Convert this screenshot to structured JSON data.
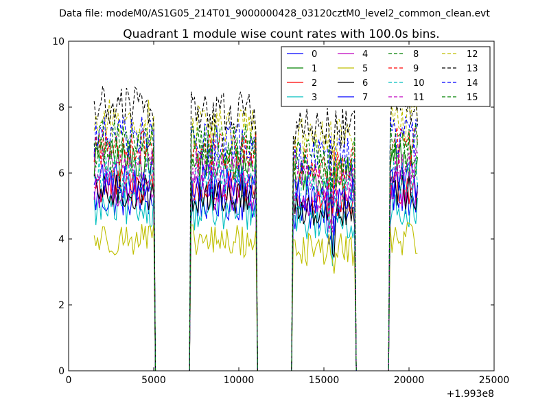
{
  "suptitle": "Data file: modeM0/AS1G05_214T01_9000000428_03120cztM0_level2_common_clean.evt",
  "chart_data": {
    "type": "line",
    "title": "Quadrant 1 module wise count rates with 100.0s bins.",
    "xlabel": "",
    "ylabel": "",
    "xlim": [
      0,
      25000
    ],
    "ylim": [
      0,
      10
    ],
    "x_offset_label": "+1.993e8",
    "xticks": [
      0,
      5000,
      10000,
      15000,
      20000,
      25000
    ],
    "xtick_labels": [
      "0",
      "5000",
      "10000",
      "15000",
      "20000",
      "25000"
    ],
    "yticks": [
      0,
      2,
      4,
      6,
      8,
      10
    ],
    "ytick_labels": [
      "0",
      "2",
      "4",
      "6",
      "8",
      "10"
    ],
    "grid": false,
    "legend_position": "top-right",
    "bin_width": 100,
    "active_segments": [
      [
        1500,
        5000
      ],
      [
        7200,
        11000
      ],
      [
        13200,
        16800
      ],
      [
        18900,
        20500
      ]
    ],
    "series": [
      {
        "name": "0",
        "color": "#0000ff",
        "dash": "solid",
        "level": 5.2
      },
      {
        "name": "1",
        "color": "#008000",
        "dash": "solid",
        "level": 6.4
      },
      {
        "name": "2",
        "color": "#ff0000",
        "dash": "solid",
        "level": 5.6
      },
      {
        "name": "3",
        "color": "#00bfbf",
        "dash": "solid",
        "level": 4.9
      },
      {
        "name": "4",
        "color": "#bf00bf",
        "dash": "solid",
        "level": 5.5
      },
      {
        "name": "5",
        "color": "#bfbf00",
        "dash": "solid",
        "level": 4.0
      },
      {
        "name": "6",
        "color": "#000000",
        "dash": "solid",
        "level": 5.4
      },
      {
        "name": "7",
        "color": "#0000ff",
        "dash": "solid",
        "level": 5.8
      },
      {
        "name": "8",
        "color": "#008000",
        "dash": "dashed",
        "level": 6.6
      },
      {
        "name": "9",
        "color": "#ff0000",
        "dash": "dashed",
        "level": 6.8
      },
      {
        "name": "10",
        "color": "#00bfbf",
        "dash": "dashed",
        "level": 5.9
      },
      {
        "name": "11",
        "color": "#bf00bf",
        "dash": "dashed",
        "level": 6.2
      },
      {
        "name": "12",
        "color": "#bfbf00",
        "dash": "dashed",
        "level": 7.6
      },
      {
        "name": "13",
        "color": "#000000",
        "dash": "dashed",
        "level": 8.0
      },
      {
        "name": "14",
        "color": "#0000ff",
        "dash": "dashed",
        "level": 7.1
      },
      {
        "name": "15",
        "color": "#008000",
        "dash": "dashed",
        "level": 7.0
      }
    ]
  }
}
